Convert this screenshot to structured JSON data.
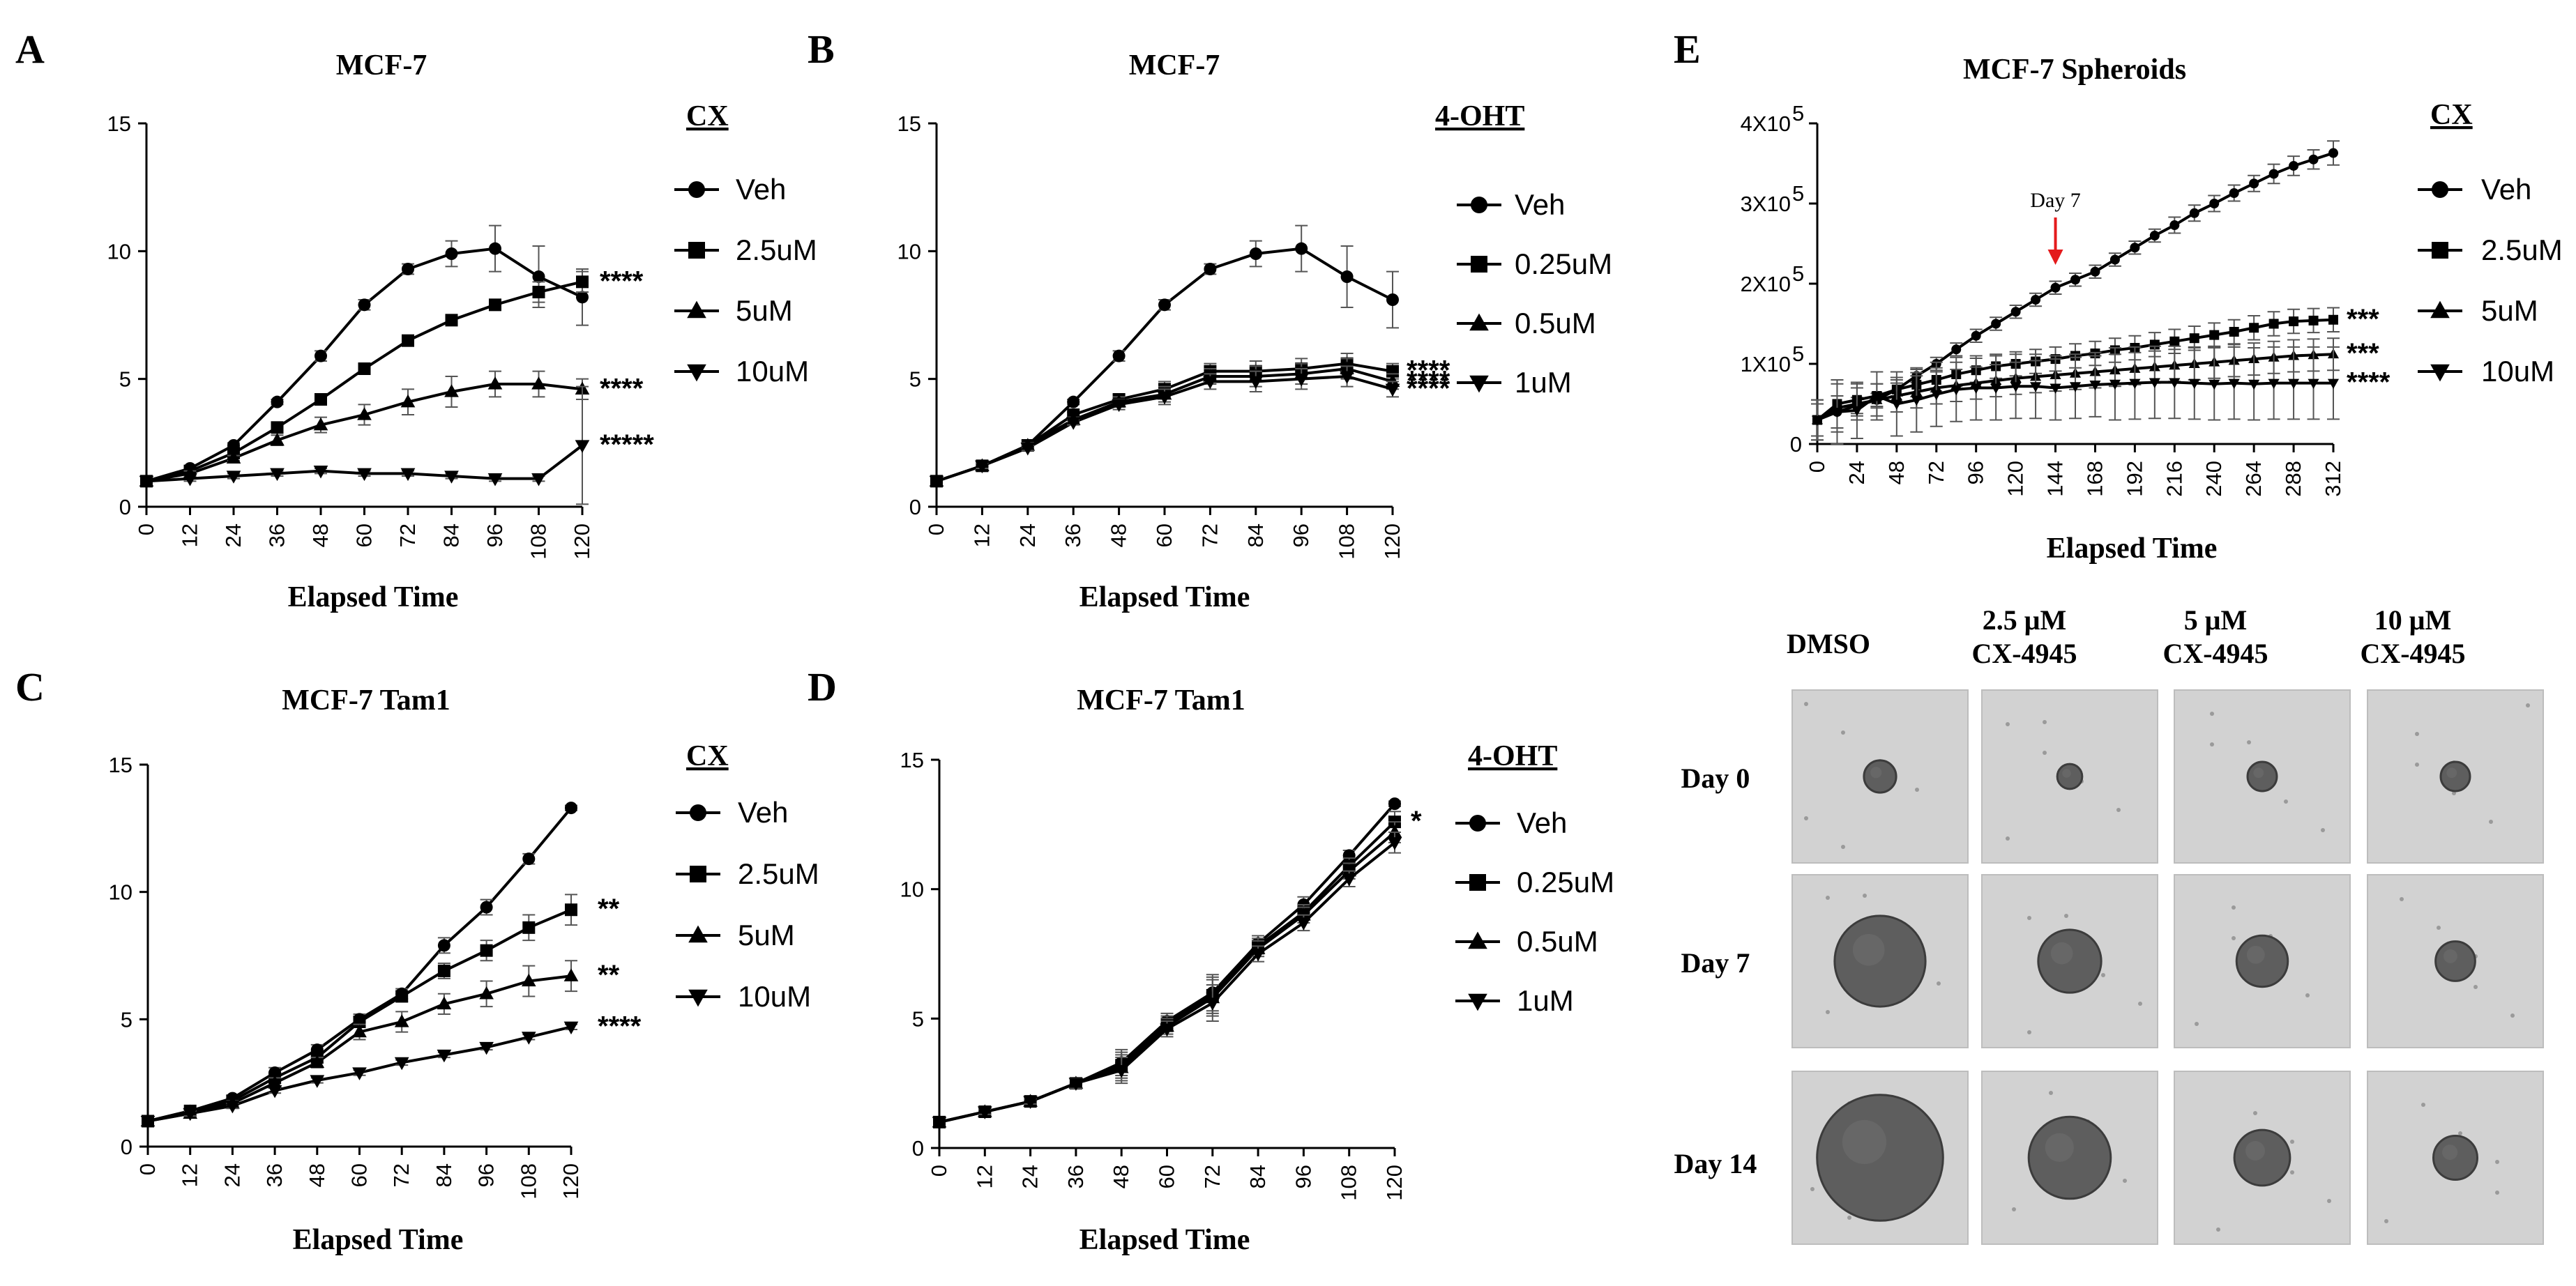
{
  "figure": {
    "background": "#ffffff",
    "ink": "#000000",
    "error_bar_color": "#555555",
    "arrow_color": "#e41a1c"
  },
  "chart_data": [
    {
      "id": "A",
      "panel_label": "A",
      "type": "line",
      "title": "MCF-7",
      "xlabel": "Elapsed Time",
      "ylabel": "",
      "x": [
        0,
        12,
        24,
        36,
        48,
        60,
        72,
        84,
        96,
        108,
        120
      ],
      "xticks": [
        "0",
        "12",
        "24",
        "36",
        "48",
        "60",
        "72",
        "84",
        "96",
        "108",
        "120"
      ],
      "ylim": [
        0,
        15
      ],
      "yticks": [
        "0",
        "5",
        "10",
        "15"
      ],
      "grid": false,
      "legend_title": "CX",
      "legend_position": "right",
      "series": [
        {
          "name": "Veh",
          "marker": "circle",
          "values": [
            1,
            1.5,
            2.4,
            4.1,
            5.9,
            7.9,
            9.3,
            9.9,
            10.1,
            9.0,
            8.2
          ],
          "errors": [
            0,
            0.1,
            0.1,
            0.1,
            0.2,
            0.2,
            0.2,
            0.5,
            0.9,
            1.2,
            1.1
          ],
          "sig": ""
        },
        {
          "name": "2.5uM",
          "marker": "square",
          "values": [
            1,
            1.4,
            2.1,
            3.1,
            4.2,
            5.4,
            6.5,
            7.3,
            7.9,
            8.4,
            8.8
          ],
          "errors": [
            0,
            0.1,
            0.1,
            0.1,
            0.1,
            0.1,
            0.1,
            0.2,
            0.2,
            0.4,
            0.4
          ],
          "sig": "****"
        },
        {
          "name": "5uM",
          "marker": "triangle",
          "values": [
            1,
            1.3,
            1.9,
            2.6,
            3.2,
            3.6,
            4.1,
            4.5,
            4.8,
            4.8,
            4.6
          ],
          "errors": [
            0,
            0.1,
            0.1,
            0.2,
            0.3,
            0.4,
            0.5,
            0.6,
            0.5,
            0.5,
            0.4
          ],
          "sig": "****"
        },
        {
          "name": "10uM",
          "marker": "tri-down",
          "values": [
            1,
            1.1,
            1.2,
            1.3,
            1.4,
            1.3,
            1.3,
            1.2,
            1.1,
            1.1,
            2.4
          ],
          "errors": [
            0,
            0.1,
            0.1,
            0.1,
            0.1,
            0.1,
            0.1,
            0.1,
            0.1,
            0.1,
            2.3
          ],
          "sig": "*****"
        }
      ]
    },
    {
      "id": "B",
      "panel_label": "B",
      "type": "line",
      "title": "MCF-7",
      "xlabel": "Elapsed Time",
      "ylabel": "",
      "x": [
        0,
        12,
        24,
        36,
        48,
        60,
        72,
        84,
        96,
        108,
        120
      ],
      "xticks": [
        "0",
        "12",
        "24",
        "36",
        "48",
        "60",
        "72",
        "84",
        "96",
        "108",
        "120"
      ],
      "ylim": [
        0,
        15
      ],
      "yticks": [
        "0",
        "5",
        "10",
        "15"
      ],
      "grid": false,
      "legend_title": "4-OHT",
      "legend_position": "right",
      "series": [
        {
          "name": "Veh",
          "marker": "circle",
          "values": [
            1,
            1.6,
            2.4,
            4.1,
            5.9,
            7.9,
            9.3,
            9.9,
            10.1,
            9.0,
            8.1
          ],
          "errors": [
            0,
            0.1,
            0.1,
            0.1,
            0.2,
            0.2,
            0.2,
            0.5,
            0.9,
            1.2,
            1.1
          ],
          "sig": ""
        },
        {
          "name": "0.25uM",
          "marker": "square",
          "values": [
            1,
            1.6,
            2.4,
            3.6,
            4.2,
            4.6,
            5.3,
            5.3,
            5.4,
            5.6,
            5.3
          ],
          "errors": [
            0,
            0.1,
            0.1,
            0.1,
            0.2,
            0.3,
            0.3,
            0.4,
            0.4,
            0.4,
            0.3
          ],
          "sig": "****"
        },
        {
          "name": "0.5uM",
          "marker": "triangle",
          "values": [
            1,
            1.6,
            2.4,
            3.4,
            4.1,
            4.4,
            5.1,
            5.1,
            5.2,
            5.4,
            4.9
          ],
          "errors": [
            0,
            0.1,
            0.1,
            0.1,
            0.2,
            0.3,
            0.3,
            0.4,
            0.4,
            0.4,
            0.3
          ],
          "sig": "****"
        },
        {
          "name": "1uM",
          "marker": "tri-down",
          "values": [
            1,
            1.6,
            2.3,
            3.3,
            4.0,
            4.3,
            4.9,
            4.9,
            5.0,
            5.1,
            4.6
          ],
          "errors": [
            0,
            0.1,
            0.1,
            0.1,
            0.2,
            0.3,
            0.3,
            0.4,
            0.4,
            0.4,
            0.3
          ],
          "sig": "****"
        }
      ]
    },
    {
      "id": "C",
      "panel_label": "C",
      "type": "line",
      "title": "MCF-7 Tam1",
      "xlabel": "Elapsed Time",
      "ylabel": "",
      "x": [
        0,
        12,
        24,
        36,
        48,
        60,
        72,
        84,
        96,
        108,
        120
      ],
      "xticks": [
        "0",
        "12",
        "24",
        "36",
        "48",
        "60",
        "72",
        "84",
        "96",
        "108",
        "120"
      ],
      "ylim": [
        0,
        15
      ],
      "yticks": [
        "0",
        "5",
        "10",
        "15"
      ],
      "grid": false,
      "legend_title": "CX",
      "legend_position": "right",
      "series": [
        {
          "name": "Veh",
          "marker": "circle",
          "values": [
            1,
            1.4,
            1.9,
            2.9,
            3.8,
            5.0,
            6.0,
            7.9,
            9.4,
            11.3,
            13.3
          ],
          "errors": [
            0,
            0.1,
            0.1,
            0.2,
            0.2,
            0.2,
            0.2,
            0.3,
            0.3,
            0.2,
            0.1
          ],
          "sig": ""
        },
        {
          "name": "2.5uM",
          "marker": "square",
          "values": [
            1,
            1.4,
            1.8,
            2.7,
            3.5,
            4.9,
            5.9,
            6.9,
            7.7,
            8.6,
            9.3
          ],
          "errors": [
            0,
            0.1,
            0.1,
            0.2,
            0.2,
            0.2,
            0.2,
            0.3,
            0.4,
            0.5,
            0.6
          ],
          "sig": "**"
        },
        {
          "name": "5uM",
          "marker": "triangle",
          "values": [
            1,
            1.3,
            1.7,
            2.5,
            3.3,
            4.5,
            4.9,
            5.6,
            6.0,
            6.5,
            6.7
          ],
          "errors": [
            0,
            0.1,
            0.1,
            0.2,
            0.2,
            0.3,
            0.4,
            0.4,
            0.5,
            0.6,
            0.6
          ],
          "sig": "**"
        },
        {
          "name": "10uM",
          "marker": "tri-down",
          "values": [
            1,
            1.3,
            1.6,
            2.2,
            2.6,
            2.9,
            3.3,
            3.6,
            3.9,
            4.3,
            4.7
          ],
          "errors": [
            0,
            0.1,
            0.1,
            0.1,
            0.1,
            0.1,
            0.1,
            0.1,
            0.1,
            0.1,
            0.1
          ],
          "sig": "****"
        }
      ]
    },
    {
      "id": "D",
      "panel_label": "D",
      "type": "line",
      "title": "MCF-7 Tam1",
      "xlabel": "Elapsed Time",
      "ylabel": "",
      "x": [
        0,
        12,
        24,
        36,
        48,
        60,
        72,
        84,
        96,
        108,
        120
      ],
      "xticks": [
        "0",
        "12",
        "24",
        "36",
        "48",
        "60",
        "72",
        "84",
        "96",
        "108",
        "120"
      ],
      "ylim": [
        0,
        15
      ],
      "yticks": [
        "0",
        "5",
        "10",
        "15"
      ],
      "grid": false,
      "legend_title": "4-OHT",
      "legend_position": "right",
      "series": [
        {
          "name": "Veh",
          "marker": "circle",
          "values": [
            1,
            1.4,
            1.8,
            2.5,
            3.3,
            4.9,
            6.0,
            7.9,
            9.4,
            11.3,
            13.3
          ],
          "errors": [
            0,
            0.1,
            0.1,
            0.2,
            0.5,
            0.3,
            0.7,
            0.3,
            0.3,
            0.2,
            0.1
          ],
          "sig": ""
        },
        {
          "name": "0.25uM",
          "marker": "square",
          "values": [
            1,
            1.4,
            1.8,
            2.5,
            3.2,
            4.8,
            5.9,
            7.8,
            9.1,
            10.9,
            12.6
          ],
          "errors": [
            0,
            0.1,
            0.1,
            0.2,
            0.5,
            0.3,
            0.7,
            0.3,
            0.3,
            0.3,
            0.4
          ],
          "sig": "*"
        },
        {
          "name": "0.5uM",
          "marker": "triangle",
          "values": [
            1,
            1.4,
            1.8,
            2.5,
            3.1,
            4.7,
            5.8,
            7.7,
            9.0,
            10.7,
            12.2
          ],
          "errors": [
            0,
            0.1,
            0.1,
            0.2,
            0.5,
            0.3,
            0.7,
            0.3,
            0.3,
            0.3,
            0.4
          ],
          "sig": ""
        },
        {
          "name": "1uM",
          "marker": "tri-down",
          "values": [
            1,
            1.4,
            1.8,
            2.5,
            3.0,
            4.6,
            5.6,
            7.5,
            8.7,
            10.4,
            11.8
          ],
          "errors": [
            0,
            0.1,
            0.1,
            0.2,
            0.5,
            0.3,
            0.7,
            0.3,
            0.3,
            0.3,
            0.4
          ],
          "sig": ""
        }
      ]
    },
    {
      "id": "E",
      "panel_label": "E",
      "type": "line",
      "title": "MCF-7 Spheroids",
      "xlabel": "Elapsed Time",
      "ylabel": "",
      "x": [
        0,
        12,
        24,
        36,
        48,
        60,
        72,
        84,
        96,
        108,
        120,
        132,
        144,
        156,
        168,
        180,
        192,
        204,
        216,
        228,
        240,
        252,
        264,
        276,
        288,
        300,
        312
      ],
      "xticks": [
        "0",
        "24",
        "48",
        "72",
        "96",
        "120",
        "144",
        "168",
        "192",
        "216",
        "240",
        "264",
        "288",
        "312"
      ],
      "xtick_values": [
        0,
        24,
        48,
        72,
        96,
        120,
        144,
        168,
        192,
        216,
        240,
        264,
        288,
        312
      ],
      "xlim": [
        0,
        312
      ],
      "ylim": [
        0,
        400000
      ],
      "ytick_values": [
        0,
        100000,
        200000,
        300000,
        400000
      ],
      "yticks": [
        "0",
        "1X10",
        "2X10",
        "3X10",
        "4X10"
      ],
      "ytick_exponent": "5",
      "grid": false,
      "legend_title": "CX",
      "legend_position": "right",
      "annotation": {
        "text": "Day 7",
        "x": 144
      },
      "series": [
        {
          "name": "Veh",
          "marker": "circle",
          "values": [
            30000,
            40000,
            48000,
            55000,
            68000,
            85000,
            100000,
            118000,
            135000,
            150000,
            165000,
            180000,
            195000,
            205000,
            215000,
            230000,
            245000,
            260000,
            273000,
            288000,
            300000,
            313000,
            325000,
            337000,
            347000,
            355000,
            363000
          ],
          "errors": [
            20000,
            20000,
            10000,
            8000,
            8000,
            8000,
            8000,
            8000,
            8000,
            8000,
            8000,
            8000,
            8000,
            8000,
            8000,
            8000,
            8000,
            8000,
            10000,
            10000,
            10000,
            10000,
            10000,
            12000,
            12000,
            12000,
            15000
          ],
          "sig": ""
        },
        {
          "name": "2.5uM",
          "marker": "square",
          "values": [
            30000,
            50000,
            55000,
            60000,
            68000,
            74000,
            80000,
            87000,
            92000,
            97000,
            100000,
            103000,
            106000,
            110000,
            113000,
            117000,
            120000,
            124000,
            128000,
            132000,
            136000,
            140000,
            145000,
            150000,
            153000,
            154000,
            155000
          ],
          "errors": [
            25000,
            30000,
            20000,
            15000,
            15000,
            15000,
            15000,
            15000,
            15000,
            15000,
            15000,
            15000,
            15000,
            15000,
            15000,
            15000,
            15000,
            15000,
            15000,
            15000,
            15000,
            15000,
            15000,
            15000,
            15000,
            15000,
            15000
          ],
          "sig": "***"
        },
        {
          "name": "5uM",
          "marker": "triangle",
          "values": [
            30000,
            45000,
            50000,
            55000,
            60000,
            65000,
            70000,
            73000,
            76000,
            79000,
            82000,
            84000,
            86000,
            88000,
            90000,
            92000,
            94000,
            96000,
            98000,
            100000,
            102000,
            104000,
            106000,
            108000,
            110000,
            111000,
            112000
          ],
          "errors": [
            25000,
            30000,
            20000,
            20000,
            20000,
            20000,
            20000,
            20000,
            20000,
            20000,
            20000,
            20000,
            20000,
            20000,
            20000,
            20000,
            20000,
            20000,
            20000,
            20000,
            20000,
            20000,
            20000,
            20000,
            20000,
            20000,
            20000
          ],
          "sig": "***"
        },
        {
          "name": "10uM",
          "marker": "tri-down",
          "values": [
            30000,
            40000,
            42000,
            60000,
            50000,
            55000,
            62000,
            68000,
            70000,
            70000,
            72000,
            72000,
            70000,
            72000,
            74000,
            75000,
            76000,
            77000,
            77000,
            76000,
            75000,
            76000,
            75000,
            76000,
            76000,
            76000,
            76000
          ],
          "errors": [
            20000,
            40000,
            35000,
            30000,
            40000,
            40000,
            40000,
            40000,
            40000,
            40000,
            40000,
            40000,
            40000,
            40000,
            40000,
            45000,
            45000,
            45000,
            45000,
            45000,
            45000,
            45000,
            45000,
            45000,
            45000,
            45000,
            45000
          ],
          "sig": "****"
        }
      ]
    }
  ],
  "spheroid_grid": {
    "panel": "E",
    "columns": [
      {
        "line1": "DMSO",
        "line2": ""
      },
      {
        "line1": "2.5 μM",
        "line2": "CX-4945"
      },
      {
        "line1": "5 μM",
        "line2": "CX-4945"
      },
      {
        "line1": "10 μM",
        "line2": "CX-4945"
      }
    ],
    "rows": [
      "Day 0",
      "Day 7",
      "Day 14"
    ],
    "spheroid_scale": [
      [
        0.22,
        0.17,
        0.2,
        0.2
      ],
      [
        0.62,
        0.43,
        0.35,
        0.27
      ],
      [
        0.86,
        0.56,
        0.38,
        0.3
      ]
    ],
    "tile_color": "#d2d2d2",
    "spheroid_color": "#5e5e5e"
  }
}
